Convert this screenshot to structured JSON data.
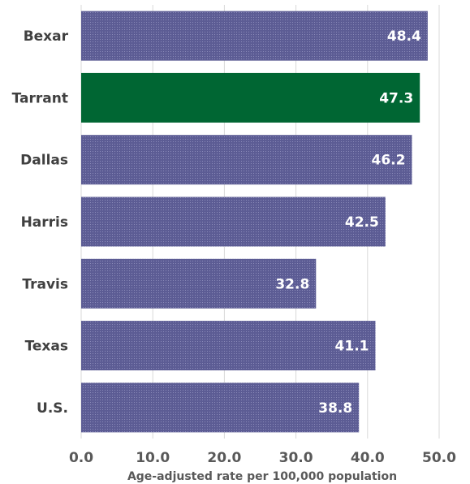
{
  "chart_data": {
    "type": "bar",
    "orientation": "horizontal",
    "categories": [
      "Bexar",
      "Tarrant",
      "Dallas",
      "Harris",
      "Travis",
      "Texas",
      "U.S."
    ],
    "values": [
      48.4,
      47.3,
      46.2,
      42.5,
      32.8,
      41.1,
      38.8
    ],
    "value_labels": [
      "48.4",
      "47.3",
      "46.2",
      "42.5",
      "32.8",
      "41.1",
      "38.8"
    ],
    "highlight_category": "Tarrant",
    "xlabel": "Age-adjusted rate per 100,000 population",
    "xlim": [
      0,
      50
    ],
    "xticks": [
      0,
      10,
      20,
      30,
      40,
      50
    ],
    "xtick_labels": [
      "0.0",
      "10.0",
      "20.0",
      "30.0",
      "40.0",
      "50.0"
    ],
    "grid": "vertical",
    "legend": "none",
    "colors": {
      "bar": "#5c5c94",
      "highlight": "#006633",
      "grid": "#d9d9d9"
    }
  }
}
